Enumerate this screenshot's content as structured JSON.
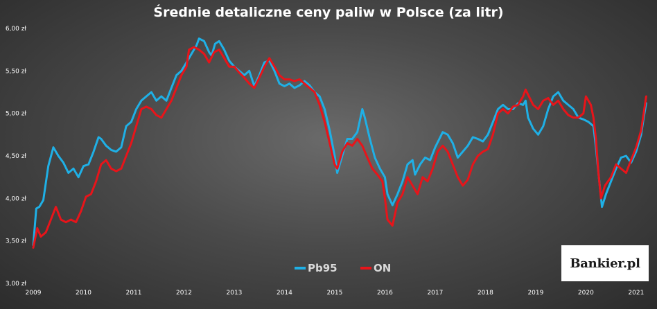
{
  "chart_data": {
    "type": "line",
    "title": "Średnie detaliczne ceny paliw w Polsce (za litr)",
    "xlabel": "",
    "ylabel": "",
    "xlim": [
      2009.0,
      2021.25
    ],
    "ylim": [
      3.0,
      6.0
    ],
    "y_ticks": [
      "3,00 zł",
      "3,50 zł",
      "4,00 zł",
      "4,50 zł",
      "5,00 zł",
      "5,50 zł",
      "6,00 zł"
    ],
    "x_ticks": [
      "2009",
      "2010",
      "2011",
      "2012",
      "2013",
      "2014",
      "2015",
      "2016",
      "2017",
      "2018",
      "2019",
      "2020",
      "2021"
    ],
    "grid": false,
    "legend": "bottom-center",
    "series": [
      {
        "name": "Pb95",
        "color": "#1fb0e6",
        "points": [
          [
            2009.0,
            3.45
          ],
          [
            2009.06,
            3.88
          ],
          [
            2009.12,
            3.9
          ],
          [
            2009.2,
            3.98
          ],
          [
            2009.3,
            4.38
          ],
          [
            2009.4,
            4.6
          ],
          [
            2009.5,
            4.5
          ],
          [
            2009.6,
            4.42
          ],
          [
            2009.7,
            4.3
          ],
          [
            2009.8,
            4.35
          ],
          [
            2009.9,
            4.25
          ],
          [
            2010.0,
            4.38
          ],
          [
            2010.1,
            4.4
          ],
          [
            2010.2,
            4.55
          ],
          [
            2010.3,
            4.72
          ],
          [
            2010.35,
            4.7
          ],
          [
            2010.45,
            4.62
          ],
          [
            2010.55,
            4.57
          ],
          [
            2010.65,
            4.55
          ],
          [
            2010.75,
            4.6
          ],
          [
            2010.85,
            4.85
          ],
          [
            2010.95,
            4.9
          ],
          [
            2011.05,
            5.05
          ],
          [
            2011.15,
            5.15
          ],
          [
            2011.25,
            5.2
          ],
          [
            2011.35,
            5.25
          ],
          [
            2011.45,
            5.15
          ],
          [
            2011.55,
            5.2
          ],
          [
            2011.65,
            5.15
          ],
          [
            2011.75,
            5.3
          ],
          [
            2011.85,
            5.45
          ],
          [
            2011.95,
            5.5
          ],
          [
            2012.05,
            5.6
          ],
          [
            2012.15,
            5.7
          ],
          [
            2012.25,
            5.8
          ],
          [
            2012.3,
            5.88
          ],
          [
            2012.4,
            5.85
          ],
          [
            2012.5,
            5.72
          ],
          [
            2012.55,
            5.68
          ],
          [
            2012.62,
            5.82
          ],
          [
            2012.7,
            5.85
          ],
          [
            2012.8,
            5.75
          ],
          [
            2012.9,
            5.62
          ],
          [
            2013.0,
            5.55
          ],
          [
            2013.1,
            5.5
          ],
          [
            2013.2,
            5.45
          ],
          [
            2013.3,
            5.5
          ],
          [
            2013.4,
            5.32
          ],
          [
            2013.5,
            5.45
          ],
          [
            2013.6,
            5.6
          ],
          [
            2013.7,
            5.62
          ],
          [
            2013.8,
            5.5
          ],
          [
            2013.9,
            5.35
          ],
          [
            2014.0,
            5.32
          ],
          [
            2014.1,
            5.35
          ],
          [
            2014.2,
            5.3
          ],
          [
            2014.3,
            5.33
          ],
          [
            2014.4,
            5.38
          ],
          [
            2014.5,
            5.33
          ],
          [
            2014.6,
            5.25
          ],
          [
            2014.7,
            5.2
          ],
          [
            2014.8,
            5.05
          ],
          [
            2014.9,
            4.8
          ],
          [
            2015.0,
            4.5
          ],
          [
            2015.05,
            4.3
          ],
          [
            2015.15,
            4.5
          ],
          [
            2015.25,
            4.7
          ],
          [
            2015.35,
            4.7
          ],
          [
            2015.45,
            4.78
          ],
          [
            2015.55,
            5.05
          ],
          [
            2015.6,
            4.95
          ],
          [
            2015.7,
            4.7
          ],
          [
            2015.8,
            4.48
          ],
          [
            2015.9,
            4.35
          ],
          [
            2016.0,
            4.25
          ],
          [
            2016.05,
            4.05
          ],
          [
            2016.15,
            3.92
          ],
          [
            2016.25,
            4.05
          ],
          [
            2016.35,
            4.2
          ],
          [
            2016.45,
            4.4
          ],
          [
            2016.55,
            4.45
          ],
          [
            2016.6,
            4.28
          ],
          [
            2016.7,
            4.4
          ],
          [
            2016.8,
            4.48
          ],
          [
            2016.9,
            4.45
          ],
          [
            2017.0,
            4.6
          ],
          [
            2017.1,
            4.72
          ],
          [
            2017.15,
            4.78
          ],
          [
            2017.25,
            4.75
          ],
          [
            2017.35,
            4.65
          ],
          [
            2017.45,
            4.48
          ],
          [
            2017.55,
            4.55
          ],
          [
            2017.65,
            4.62
          ],
          [
            2017.75,
            4.72
          ],
          [
            2017.85,
            4.7
          ],
          [
            2017.95,
            4.67
          ],
          [
            2018.05,
            4.75
          ],
          [
            2018.15,
            4.9
          ],
          [
            2018.25,
            5.05
          ],
          [
            2018.35,
            5.1
          ],
          [
            2018.45,
            5.05
          ],
          [
            2018.55,
            5.05
          ],
          [
            2018.65,
            5.12
          ],
          [
            2018.75,
            5.1
          ],
          [
            2018.8,
            5.15
          ],
          [
            2018.85,
            4.95
          ],
          [
            2018.95,
            4.82
          ],
          [
            2019.05,
            4.75
          ],
          [
            2019.15,
            4.85
          ],
          [
            2019.25,
            5.05
          ],
          [
            2019.35,
            5.2
          ],
          [
            2019.45,
            5.25
          ],
          [
            2019.55,
            5.15
          ],
          [
            2019.65,
            5.1
          ],
          [
            2019.75,
            5.05
          ],
          [
            2019.85,
            4.95
          ],
          [
            2019.95,
            4.93
          ],
          [
            2020.05,
            4.9
          ],
          [
            2020.15,
            4.85
          ],
          [
            2020.2,
            4.6
          ],
          [
            2020.25,
            4.3
          ],
          [
            2020.32,
            3.9
          ],
          [
            2020.4,
            4.05
          ],
          [
            2020.5,
            4.2
          ],
          [
            2020.6,
            4.35
          ],
          [
            2020.7,
            4.48
          ],
          [
            2020.8,
            4.5
          ],
          [
            2020.9,
            4.42
          ],
          [
            2021.0,
            4.55
          ],
          [
            2021.1,
            4.75
          ],
          [
            2021.15,
            4.95
          ],
          [
            2021.2,
            5.12
          ]
        ]
      },
      {
        "name": "ON",
        "color": "#e8141a",
        "points": [
          [
            2009.0,
            3.42
          ],
          [
            2009.08,
            3.65
          ],
          [
            2009.15,
            3.55
          ],
          [
            2009.25,
            3.6
          ],
          [
            2009.35,
            3.75
          ],
          [
            2009.45,
            3.9
          ],
          [
            2009.55,
            3.75
          ],
          [
            2009.65,
            3.72
          ],
          [
            2009.75,
            3.75
          ],
          [
            2009.85,
            3.72
          ],
          [
            2009.95,
            3.85
          ],
          [
            2010.05,
            4.02
          ],
          [
            2010.15,
            4.05
          ],
          [
            2010.25,
            4.2
          ],
          [
            2010.35,
            4.4
          ],
          [
            2010.45,
            4.45
          ],
          [
            2010.55,
            4.35
          ],
          [
            2010.65,
            4.32
          ],
          [
            2010.75,
            4.35
          ],
          [
            2010.85,
            4.5
          ],
          [
            2010.95,
            4.65
          ],
          [
            2011.05,
            4.85
          ],
          [
            2011.15,
            5.05
          ],
          [
            2011.25,
            5.08
          ],
          [
            2011.35,
            5.05
          ],
          [
            2011.45,
            4.98
          ],
          [
            2011.55,
            4.95
          ],
          [
            2011.65,
            5.05
          ],
          [
            2011.75,
            5.15
          ],
          [
            2011.85,
            5.3
          ],
          [
            2011.95,
            5.45
          ],
          [
            2012.05,
            5.55
          ],
          [
            2012.1,
            5.75
          ],
          [
            2012.2,
            5.78
          ],
          [
            2012.3,
            5.75
          ],
          [
            2012.4,
            5.7
          ],
          [
            2012.5,
            5.6
          ],
          [
            2012.6,
            5.72
          ],
          [
            2012.7,
            5.75
          ],
          [
            2012.8,
            5.65
          ],
          [
            2012.9,
            5.55
          ],
          [
            2013.0,
            5.55
          ],
          [
            2013.1,
            5.48
          ],
          [
            2013.2,
            5.42
          ],
          [
            2013.3,
            5.35
          ],
          [
            2013.4,
            5.3
          ],
          [
            2013.5,
            5.42
          ],
          [
            2013.6,
            5.55
          ],
          [
            2013.7,
            5.65
          ],
          [
            2013.8,
            5.55
          ],
          [
            2013.9,
            5.45
          ],
          [
            2014.0,
            5.4
          ],
          [
            2014.1,
            5.4
          ],
          [
            2014.2,
            5.38
          ],
          [
            2014.3,
            5.4
          ],
          [
            2014.4,
            5.35
          ],
          [
            2014.5,
            5.3
          ],
          [
            2014.6,
            5.25
          ],
          [
            2014.7,
            5.1
          ],
          [
            2014.8,
            4.9
          ],
          [
            2014.9,
            4.65
          ],
          [
            2015.0,
            4.4
          ],
          [
            2015.05,
            4.35
          ],
          [
            2015.15,
            4.55
          ],
          [
            2015.25,
            4.65
          ],
          [
            2015.35,
            4.62
          ],
          [
            2015.45,
            4.7
          ],
          [
            2015.55,
            4.62
          ],
          [
            2015.65,
            4.48
          ],
          [
            2015.75,
            4.35
          ],
          [
            2015.85,
            4.28
          ],
          [
            2015.95,
            4.2
          ],
          [
            2016.0,
            4.0
          ],
          [
            2016.05,
            3.75
          ],
          [
            2016.15,
            3.68
          ],
          [
            2016.25,
            3.95
          ],
          [
            2016.35,
            4.05
          ],
          [
            2016.45,
            4.25
          ],
          [
            2016.55,
            4.15
          ],
          [
            2016.65,
            4.05
          ],
          [
            2016.75,
            4.25
          ],
          [
            2016.85,
            4.2
          ],
          [
            2016.95,
            4.35
          ],
          [
            2017.05,
            4.55
          ],
          [
            2017.15,
            4.62
          ],
          [
            2017.25,
            4.55
          ],
          [
            2017.35,
            4.4
          ],
          [
            2017.45,
            4.25
          ],
          [
            2017.55,
            4.15
          ],
          [
            2017.65,
            4.22
          ],
          [
            2017.75,
            4.4
          ],
          [
            2017.85,
            4.5
          ],
          [
            2017.95,
            4.55
          ],
          [
            2018.05,
            4.58
          ],
          [
            2018.15,
            4.75
          ],
          [
            2018.25,
            5.0
          ],
          [
            2018.35,
            5.05
          ],
          [
            2018.45,
            5.0
          ],
          [
            2018.55,
            5.08
          ],
          [
            2018.65,
            5.1
          ],
          [
            2018.75,
            5.2
          ],
          [
            2018.8,
            5.28
          ],
          [
            2018.85,
            5.22
          ],
          [
            2018.95,
            5.1
          ],
          [
            2019.05,
            5.05
          ],
          [
            2019.15,
            5.15
          ],
          [
            2019.25,
            5.18
          ],
          [
            2019.35,
            5.1
          ],
          [
            2019.45,
            5.15
          ],
          [
            2019.55,
            5.05
          ],
          [
            2019.65,
            4.98
          ],
          [
            2019.75,
            4.95
          ],
          [
            2019.85,
            4.95
          ],
          [
            2019.95,
            5.0
          ],
          [
            2020.0,
            5.2
          ],
          [
            2020.1,
            5.1
          ],
          [
            2020.15,
            4.95
          ],
          [
            2020.2,
            4.7
          ],
          [
            2020.25,
            4.3
          ],
          [
            2020.3,
            4.0
          ],
          [
            2020.38,
            4.15
          ],
          [
            2020.5,
            4.25
          ],
          [
            2020.6,
            4.4
          ],
          [
            2020.7,
            4.35
          ],
          [
            2020.8,
            4.3
          ],
          [
            2020.9,
            4.45
          ],
          [
            2021.0,
            4.6
          ],
          [
            2021.1,
            4.8
          ],
          [
            2021.15,
            5.0
          ],
          [
            2021.2,
            5.2
          ]
        ]
      }
    ]
  },
  "logo": {
    "text": "Bankier.pl"
  }
}
